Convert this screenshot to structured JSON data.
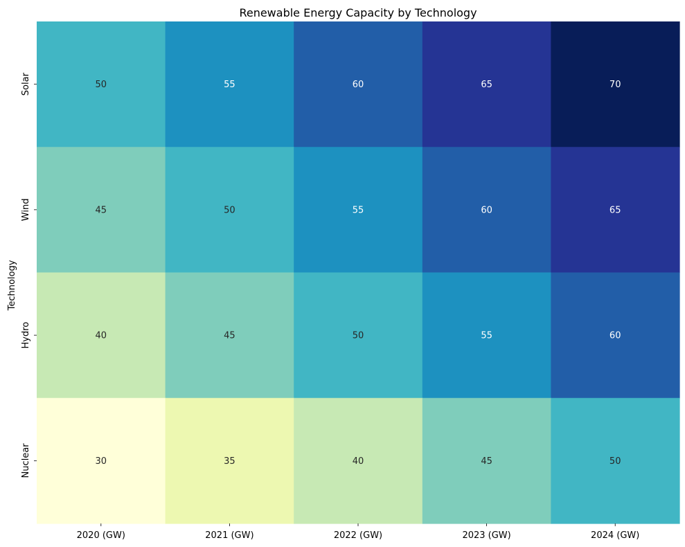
{
  "chart_data": {
    "type": "heatmap",
    "title": "Renewable Energy Capacity by Technology",
    "xlabel": "",
    "ylabel": "Technology",
    "x_categories": [
      "2020 (GW)",
      "2021 (GW)",
      "2022 (GW)",
      "2023 (GW)",
      "2024 (GW)"
    ],
    "y_categories": [
      "Solar",
      "Wind",
      "Hydro",
      "Nuclear"
    ],
    "values": [
      [
        50,
        55,
        60,
        65,
        70
      ],
      [
        45,
        50,
        55,
        60,
        65
      ],
      [
        40,
        45,
        50,
        55,
        60
      ],
      [
        30,
        35,
        40,
        45,
        50
      ]
    ],
    "colormap": "YlGnBu",
    "value_range": [
      30,
      70
    ],
    "annotated": true,
    "colorbar": false,
    "colors": {
      "30": "#ffffd9",
      "35": "#edf8b1",
      "40": "#c7e9b4",
      "45": "#7fcdbb",
      "50": "#41b6c4",
      "55": "#1d91c0",
      "60": "#225ea8",
      "65": "#253494",
      "70": "#081d58"
    },
    "label_colors": {
      "dark": "#262626",
      "light": "#ffffff"
    }
  }
}
